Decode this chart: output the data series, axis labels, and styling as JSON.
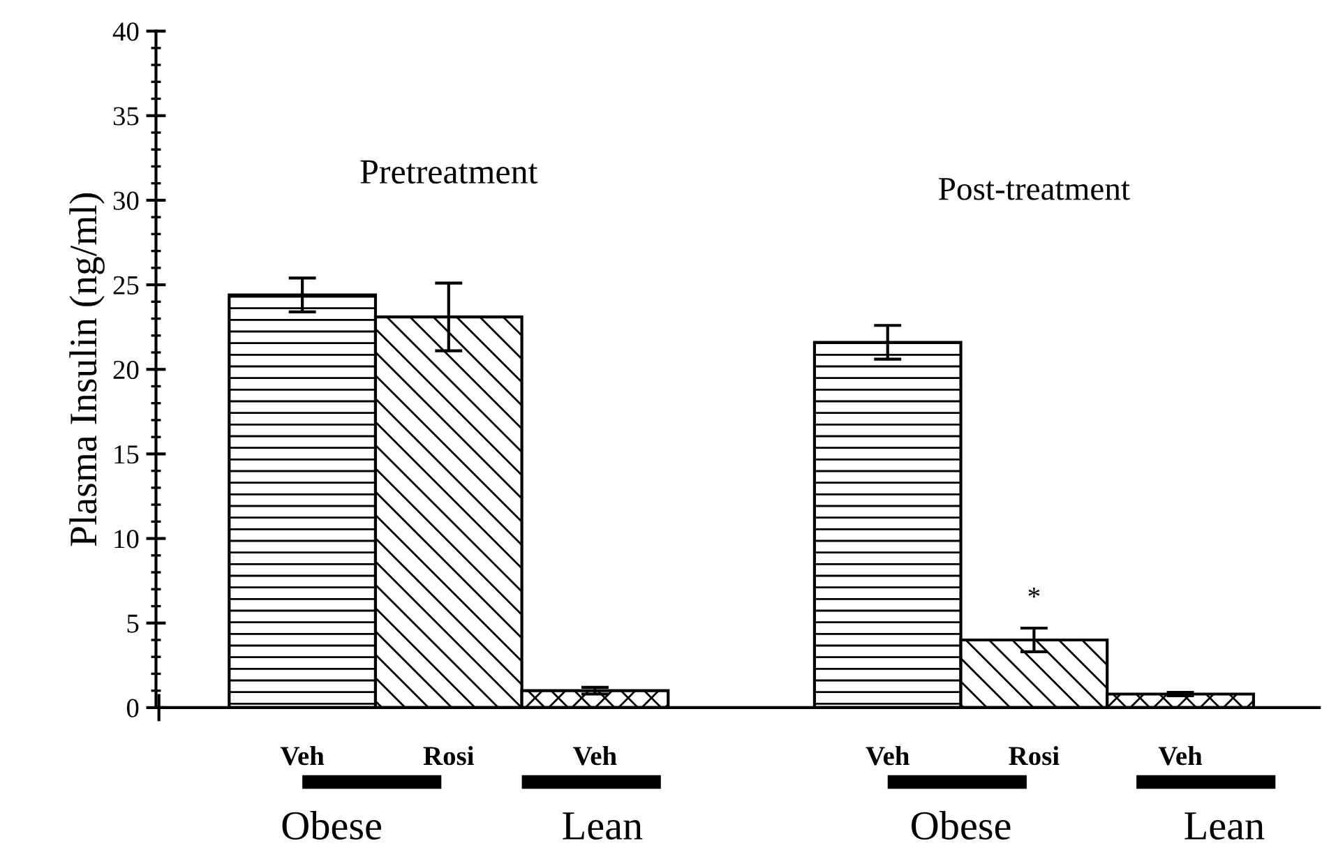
{
  "chart_data": {
    "type": "bar",
    "ylabel": "Plasma Insulin (ng/ml)",
    "categories": [
      "Veh",
      "Rosi",
      "Veh",
      null,
      "Veh",
      "Rosi",
      "Veh"
    ],
    "values": [
      24.4,
      23.1,
      1.0,
      null,
      21.6,
      4.0,
      0.8
    ],
    "errors": [
      1.0,
      2.0,
      0.2,
      null,
      1.0,
      0.7,
      0.1
    ],
    "colors": [
      "#000000",
      "#000000",
      "#000000",
      null,
      "#000000",
      "#000000",
      "#000000"
    ],
    "ylim": [
      0,
      40
    ],
    "yticks": [
      0,
      5,
      10,
      15,
      20,
      25,
      30,
      35,
      40
    ],
    "grid": false,
    "legend": false,
    "annotations": [
      "Pretreatment",
      "Post-treatment",
      "Obese",
      "Lean",
      "Obese",
      "Lean",
      "*"
    ]
  }
}
